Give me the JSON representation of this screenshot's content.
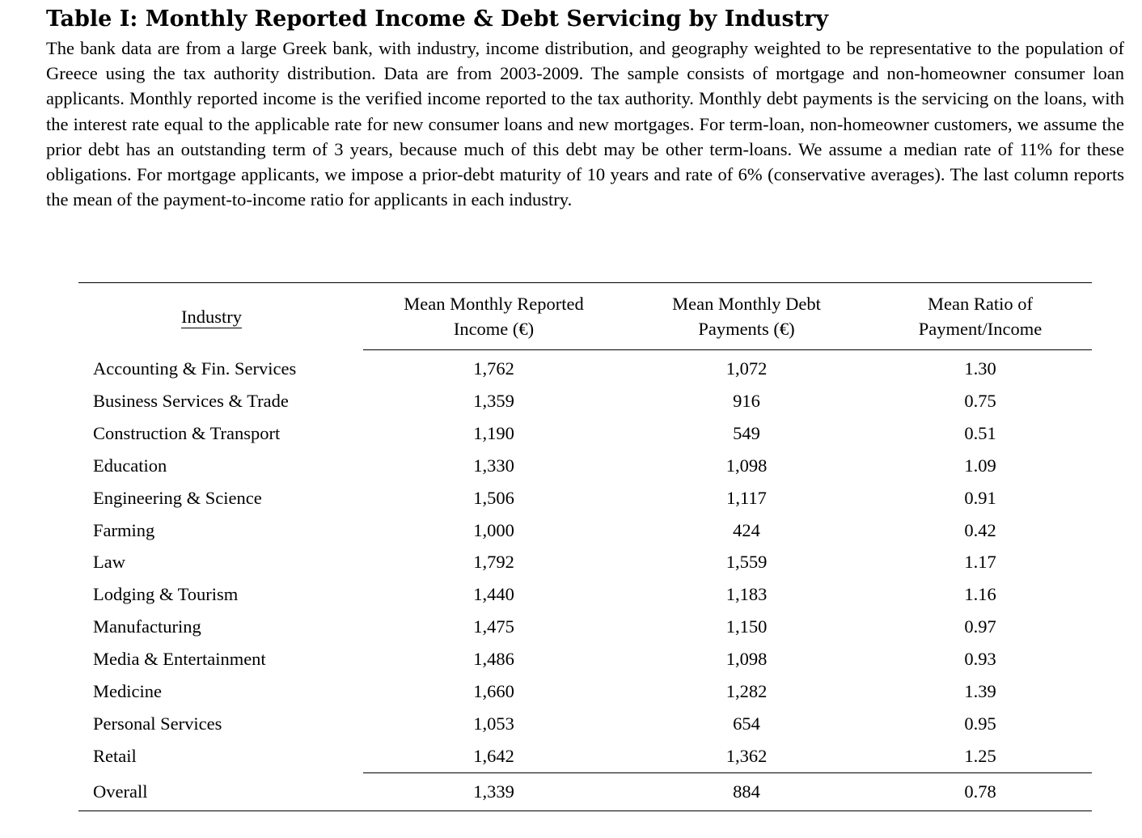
{
  "table": {
    "title": "Table I: Monthly Reported Income & Debt Servicing by Industry",
    "caption": "The bank data are from a large Greek bank, with industry, income distribution, and geography weighted to be representative to the population of Greece using the tax authority distribution.  Data are from 2003-2009.  The sample consists of mortgage and non-homeowner consumer loan applicants. Monthly reported income is the verified income reported to the tax authority. Monthly debt payments is the servicing on the loans, with the interest rate equal to the applicable rate for new consumer loans and new mortgages. For term-loan, non-homeowner customers, we assume the prior debt has an outstanding term of 3 years, because much of this debt may be other term-loans. We assume a median rate of 11% for these obligations. For mortgage applicants, we impose a prior-debt maturity of 10 years and rate of 6% (conservative averages). The last column reports the mean of the payment-to-income ratio for applicants in each industry.",
    "headers": {
      "industry": "Industry",
      "income_line1": "Mean Monthly Reported",
      "income_line2": "Income (€)",
      "debt_line1": "Mean Monthly Debt",
      "debt_line2": "Payments (€)",
      "ratio_line1": "Mean Ratio of",
      "ratio_line2": "Payment/Income"
    },
    "rows": [
      {
        "industry": "Accounting & Fin. Services",
        "income": "1,762",
        "debt": "1,072",
        "ratio": "1.30"
      },
      {
        "industry": "Business Services & Trade",
        "income": "1,359",
        "debt": "916",
        "ratio": "0.75"
      },
      {
        "industry": "Construction & Transport",
        "income": "1,190",
        "debt": "549",
        "ratio": "0.51"
      },
      {
        "industry": "Education",
        "income": "1,330",
        "debt": "1,098",
        "ratio": "1.09"
      },
      {
        "industry": "Engineering & Science",
        "income": "1,506",
        "debt": "1,117",
        "ratio": "0.91"
      },
      {
        "industry": "Farming",
        "income": "1,000",
        "debt": "424",
        "ratio": "0.42"
      },
      {
        "industry": "Law",
        "income": "1,792",
        "debt": "1,559",
        "ratio": "1.17"
      },
      {
        "industry": "Lodging & Tourism",
        "income": "1,440",
        "debt": "1,183",
        "ratio": "1.16"
      },
      {
        "industry": "Manufacturing",
        "income": "1,475",
        "debt": "1,150",
        "ratio": "0.97"
      },
      {
        "industry": "Media & Entertainment",
        "income": "1,486",
        "debt": "1,098",
        "ratio": "0.93"
      },
      {
        "industry": "Medicine",
        "income": "1,660",
        "debt": "1,282",
        "ratio": "1.39"
      },
      {
        "industry": "Personal Services",
        "income": "1,053",
        "debt": "654",
        "ratio": "0.95"
      },
      {
        "industry": "Retail",
        "income": "1,642",
        "debt": "1,362",
        "ratio": "1.25"
      }
    ],
    "overall": {
      "industry": "Overall",
      "income": "1,339",
      "debt": "884",
      "ratio": "0.78"
    }
  }
}
